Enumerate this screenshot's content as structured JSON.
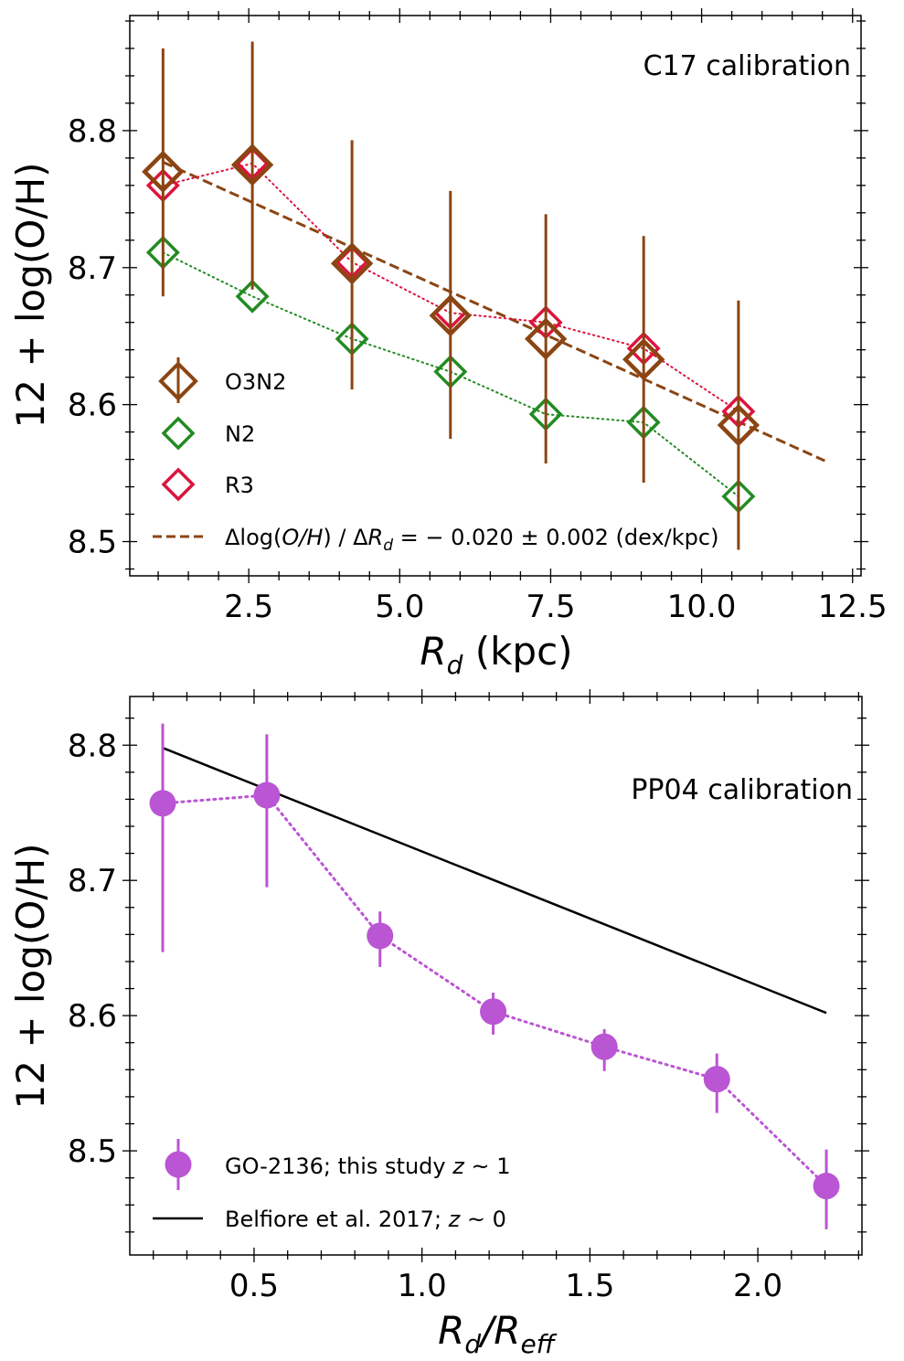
{
  "chart_data": [
    {
      "type": "scatter",
      "annotation": "C17 calibration",
      "xlabel": "R_d (kpc)",
      "ylabel": "12 + log(O/H)",
      "xlim": [
        0.53,
        12.64
      ],
      "ylim": [
        8.475,
        8.884
      ],
      "xticks": [
        2.5,
        5.0,
        7.5,
        10.0,
        12.5
      ],
      "xtick_labels": [
        "2.5",
        "5.0",
        "7.5",
        "10.0",
        "12.5"
      ],
      "xminor_step": 0.5,
      "yticks": [
        8.5,
        8.6,
        8.7,
        8.8
      ],
      "ytick_labels": [
        "8.5",
        "8.6",
        "8.7",
        "8.8"
      ],
      "yminor_step": 0.02,
      "grid": false,
      "legend_position": "bottom-left",
      "x": [
        1.08,
        2.56,
        4.21,
        5.84,
        7.42,
        9.04,
        10.61
      ],
      "series": [
        {
          "name": "O3N2",
          "color": "#8B4513",
          "marker": "open-diamond-large",
          "connect": false,
          "values": [
            8.77,
            8.775,
            8.703,
            8.665,
            8.648,
            8.633,
            8.585
          ],
          "err_low": [
            8.679,
            8.684,
            8.611,
            8.575,
            8.557,
            8.543,
            8.494
          ],
          "err_high": [
            8.86,
            8.865,
            8.793,
            8.756,
            8.739,
            8.723,
            8.676
          ]
        },
        {
          "name": "N2",
          "color": "#228B22",
          "marker": "open-diamond",
          "connect": "dotted",
          "values": [
            8.711,
            8.679,
            8.648,
            8.624,
            8.593,
            8.587,
            8.533
          ]
        },
        {
          "name": "R3",
          "color": "#DC143C",
          "marker": "open-diamond",
          "connect": "dotted",
          "values": [
            8.76,
            8.776,
            8.704,
            8.667,
            8.66,
            8.641,
            8.595
          ]
        }
      ],
      "fit": {
        "label": "Δlog(O/H) / ΔR_d = −0.020 ± 0.002 (dex/kpc)",
        "label_parts": {
          "prefix": "Δlog(",
          "oh": "O/H",
          "mid": ") / Δ",
          "r": "R",
          "sub": "d",
          "suffix": " = − 0.020 ± 0.002 (dex/kpc)"
        },
        "color": "#8B4513",
        "style": "dashed",
        "x": [
          1.08,
          12.04
        ],
        "y": [
          8.777,
          8.559
        ]
      }
    },
    {
      "type": "scatter",
      "annotation": "PP04 calibration",
      "xlabel": "R_d/R_eff",
      "ylabel": "12 + log(O/H)",
      "xlim": [
        0.13,
        2.31
      ],
      "ylim": [
        8.423,
        8.836
      ],
      "xticks": [
        0.5,
        1.0,
        1.5,
        2.0
      ],
      "xtick_labels": [
        "0.5",
        "1.0",
        "1.5",
        "2.0"
      ],
      "xminor_step": 0.1,
      "yticks": [
        8.5,
        8.6,
        8.7,
        8.8
      ],
      "ytick_labels": [
        "8.5",
        "8.6",
        "8.7",
        "8.8"
      ],
      "yminor_step": 0.02,
      "grid": false,
      "legend_position": "bottom-left",
      "x": [
        0.228,
        0.538,
        0.875,
        1.212,
        1.543,
        1.878,
        2.204
      ],
      "series": [
        {
          "name": "GO-2136; this study z ~ 1",
          "label_parts": {
            "prefix": "GO-2136; this study ",
            "z": "z",
            "suffix": " ~ 1"
          },
          "color": "#BA55D3",
          "marker": "filled-circle",
          "connect": "dotted",
          "values": [
            8.757,
            8.763,
            8.659,
            8.603,
            8.577,
            8.553,
            8.474
          ],
          "err_low": [
            8.647,
            8.695,
            8.636,
            8.586,
            8.559,
            8.528,
            8.442
          ],
          "err_high": [
            8.816,
            8.808,
            8.677,
            8.617,
            8.59,
            8.572,
            8.501
          ]
        }
      ],
      "reference": {
        "name": "Belfiore et al. 2017; z ~ 0",
        "label_parts": {
          "prefix": "Belfiore et al. 2017; ",
          "z": "z",
          "suffix": " ~ 0"
        },
        "color": "#000000",
        "style": "solid",
        "x": [
          0.228,
          2.204
        ],
        "y": [
          8.798,
          8.602
        ]
      }
    }
  ]
}
